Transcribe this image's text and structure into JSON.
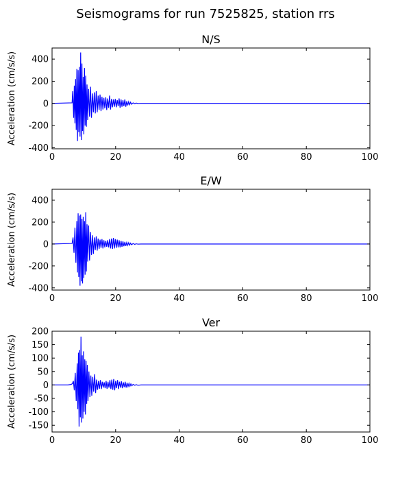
{
  "figure": {
    "title": "Seismograms for run 7525825, station rrs"
  },
  "chart_data": [
    {
      "type": "line",
      "title": "N/S",
      "ylabel": "Acceleration (cm/s/s)",
      "xlabel": "",
      "xlim": [
        0,
        100
      ],
      "ylim": [
        -410,
        500
      ],
      "xticks": [
        0,
        20,
        40,
        60,
        80,
        100
      ],
      "yticks": [
        -400,
        -200,
        0,
        200,
        400
      ],
      "grid": false,
      "color": "#0000ff",
      "series": [
        {
          "x": [
            0,
            6.3,
            6.5,
            6.8,
            7.0,
            7.2,
            7.4,
            7.6,
            7.8,
            8.0,
            8.2,
            8.4,
            8.6,
            8.8,
            9.0,
            9.2,
            9.4,
            9.6,
            9.8,
            10.0,
            10.2,
            10.4,
            10.6,
            10.8,
            11.0,
            11.2,
            11.5,
            11.8,
            12.1,
            12.4,
            12.7,
            13.0,
            13.3,
            13.6,
            13.9,
            14.2,
            14.5,
            14.8,
            15.1,
            15.4,
            15.7,
            16.0,
            16.3,
            16.6,
            16.9,
            17.2,
            17.5,
            17.8,
            18.1,
            18.4,
            18.7,
            19.0,
            19.3,
            19.6,
            19.9,
            20.2,
            20.5,
            20.8,
            21.1,
            21.4,
            21.7,
            22.0,
            22.3,
            22.6,
            22.9,
            23.2,
            23.5,
            23.8,
            24.1,
            24.4,
            24.7,
            25.0,
            25.5,
            26.0,
            26.5,
            27.0,
            28.0,
            100
          ],
          "y": [
            0,
            5,
            110,
            -130,
            160,
            -180,
            220,
            -240,
            310,
            -340,
            300,
            -260,
            330,
            -300,
            460,
            -330,
            360,
            -250,
            240,
            -280,
            320,
            -200,
            250,
            -210,
            170,
            -150,
            130,
            -120,
            150,
            -130,
            90,
            -80,
            100,
            -90,
            110,
            -80,
            70,
            -60,
            80,
            -70,
            60,
            -55,
            50,
            -45,
            55,
            -60,
            45,
            -40,
            70,
            -55,
            40,
            -35,
            35,
            -30,
            40,
            -35,
            30,
            -25,
            45,
            -40,
            35,
            -30,
            30,
            -25,
            35,
            -30,
            20,
            -18,
            15,
            -12,
            10,
            -8,
            5,
            -4,
            3,
            -2,
            0,
            0
          ]
        }
      ]
    },
    {
      "type": "line",
      "title": "E/W",
      "ylabel": "Acceleration (cm/s/s)",
      "xlabel": "",
      "xlim": [
        0,
        100
      ],
      "ylim": [
        -420,
        500
      ],
      "xticks": [
        0,
        20,
        40,
        60,
        80,
        100
      ],
      "yticks": [
        -400,
        -200,
        0,
        200,
        400
      ],
      "grid": false,
      "color": "#0000ff",
      "series": [
        {
          "x": [
            0,
            6.3,
            6.6,
            6.9,
            7.2,
            7.5,
            7.8,
            8.0,
            8.2,
            8.4,
            8.6,
            8.8,
            9.0,
            9.2,
            9.4,
            9.6,
            9.8,
            10.0,
            10.2,
            10.4,
            10.6,
            10.8,
            11.0,
            11.2,
            11.5,
            11.8,
            12.1,
            12.4,
            12.7,
            13.0,
            13.3,
            13.6,
            13.9,
            14.2,
            14.5,
            14.8,
            15.1,
            15.4,
            15.7,
            16.0,
            16.3,
            16.6,
            16.9,
            17.2,
            17.5,
            17.8,
            18.1,
            18.4,
            18.7,
            19.0,
            19.3,
            19.6,
            19.9,
            20.2,
            20.5,
            20.8,
            21.1,
            21.4,
            21.7,
            22.0,
            22.3,
            22.6,
            22.9,
            23.2,
            23.5,
            23.8,
            24.1,
            24.4,
            24.7,
            25.0,
            25.5,
            26.0,
            26.5,
            27.0,
            28.0,
            100
          ],
          "y": [
            0,
            5,
            60,
            -80,
            150,
            -170,
            210,
            -260,
            280,
            -300,
            260,
            -380,
            270,
            -340,
            230,
            -360,
            250,
            -310,
            210,
            -280,
            290,
            -250,
            180,
            -160,
            170,
            -150,
            110,
            -100,
            80,
            -90,
            60,
            -55,
            70,
            -60,
            50,
            -45,
            40,
            -35,
            45,
            -40,
            35,
            -30,
            30,
            -25,
            35,
            -30,
            45,
            -40,
            50,
            -45,
            55,
            -40,
            45,
            -35,
            40,
            -30,
            35,
            -30,
            30,
            -25,
            25,
            -20,
            20,
            -18,
            15,
            -12,
            12,
            -10,
            8,
            -6,
            4,
            -3,
            2,
            -1,
            0,
            0
          ]
        }
      ]
    },
    {
      "type": "line",
      "title": "Ver",
      "ylabel": "Acceleration (cm/s/s)",
      "xlabel": "",
      "xlim": [
        0,
        100
      ],
      "ylim": [
        -175,
        200
      ],
      "xticks": [
        0,
        20,
        40,
        60,
        80,
        100
      ],
      "yticks": [
        -150,
        -100,
        -50,
        0,
        50,
        100,
        150,
        200
      ],
      "grid": false,
      "color": "#0000ff",
      "series": [
        {
          "x": [
            0,
            5.0,
            6.0,
            6.4,
            6.7,
            7.0,
            7.3,
            7.6,
            7.9,
            8.1,
            8.3,
            8.5,
            8.7,
            8.9,
            9.1,
            9.3,
            9.5,
            9.7,
            9.9,
            10.1,
            10.3,
            10.5,
            10.7,
            10.9,
            11.1,
            11.3,
            11.6,
            11.9,
            12.2,
            12.5,
            12.8,
            13.1,
            13.4,
            13.7,
            14.0,
            14.3,
            14.6,
            14.9,
            15.2,
            15.5,
            15.8,
            16.1,
            16.4,
            16.7,
            17.0,
            17.3,
            17.6,
            17.9,
            18.2,
            18.5,
            18.8,
            19.1,
            19.4,
            19.7,
            20.0,
            20.3,
            20.6,
            20.9,
            21.2,
            21.5,
            21.8,
            22.1,
            22.4,
            22.7,
            23.0,
            23.3,
            23.6,
            23.9,
            24.2,
            24.5,
            24.8,
            25.1,
            25.5,
            26.0,
            26.5,
            27.0,
            28.0,
            100
          ],
          "y": [
            0,
            0,
            2,
            5,
            15,
            -20,
            45,
            -60,
            80,
            -90,
            120,
            -155,
            130,
            -120,
            180,
            -140,
            110,
            -125,
            125,
            -100,
            95,
            -110,
            90,
            -70,
            75,
            -60,
            50,
            -45,
            35,
            -40,
            30,
            -25,
            40,
            -30,
            20,
            -18,
            15,
            -14,
            18,
            -15,
            12,
            -10,
            10,
            -12,
            15,
            -14,
            12,
            -10,
            18,
            -15,
            20,
            -18,
            22,
            -20,
            15,
            -12,
            18,
            -15,
            12,
            -10,
            14,
            -12,
            10,
            -8,
            12,
            -10,
            8,
            -6,
            6,
            -5,
            4,
            -3,
            2,
            -1,
            1,
            -1,
            0,
            0
          ]
        }
      ]
    }
  ]
}
